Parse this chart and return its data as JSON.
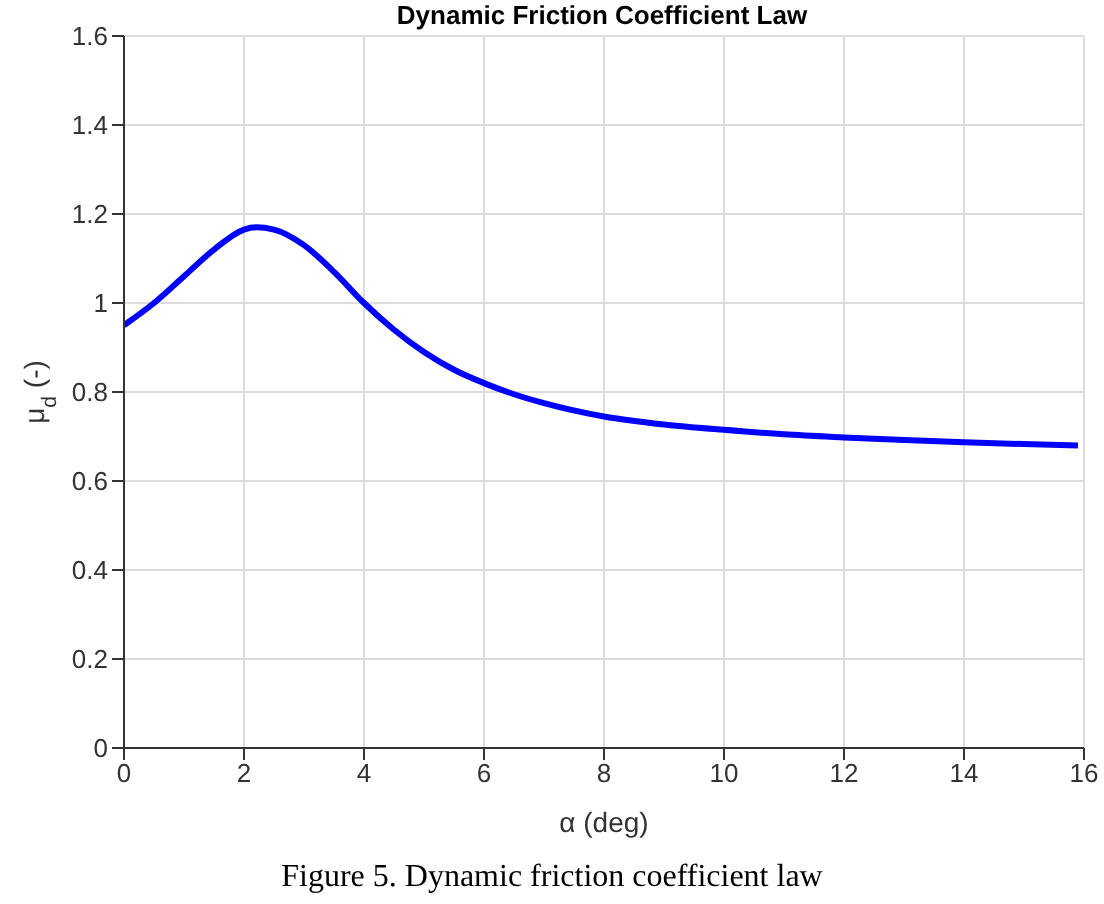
{
  "chart_data": {
    "type": "line",
    "title": "Dynamic Friction Coefficient Law",
    "xlabel": "α (deg)",
    "ylabel": "μ$_{d}$ (-)",
    "annotations": [
      "Figure 5. Dynamic friction coefficient law"
    ],
    "x": [
      0,
      0.5,
      1,
      1.5,
      2,
      2.2,
      2.5,
      3,
      3.5,
      4,
      4.5,
      5,
      5.5,
      6,
      6.5,
      7,
      8,
      9,
      10,
      11,
      12,
      13,
      14,
      15,
      15.9
    ],
    "series": [
      {
        "color": "#0000ff",
        "values": [
          0.95,
          1.0,
          1.06,
          1.12,
          1.165,
          1.17,
          1.165,
          1.13,
          1.07,
          1.0,
          0.94,
          0.89,
          0.85,
          0.82,
          0.795,
          0.775,
          0.745,
          0.727,
          0.715,
          0.705,
          0.698,
          0.692,
          0.687,
          0.683,
          0.68
        ]
      }
    ],
    "xlim": [
      0,
      16
    ],
    "xticks": [
      0,
      2,
      4,
      6,
      8,
      10,
      12,
      14,
      16
    ],
    "ylim": [
      0,
      1.6
    ],
    "yticks": [
      0,
      0.2,
      0.4,
      0.6,
      0.8,
      1,
      1.2,
      1.4,
      1.6
    ],
    "grid": true,
    "marker": "none",
    "line_style": "solid"
  }
}
